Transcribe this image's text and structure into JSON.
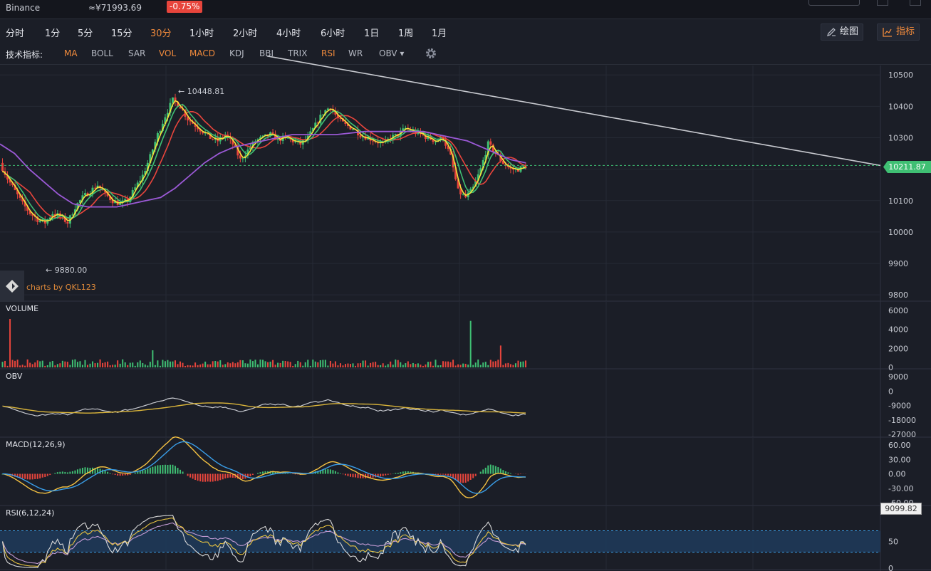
{
  "header": {
    "exchange": "Binance",
    "price": "≈¥71993.69",
    "change": "-0.75%"
  },
  "periods": [
    {
      "label": "分时",
      "active": false
    },
    {
      "label": "1分",
      "active": false
    },
    {
      "label": "5分",
      "active": false
    },
    {
      "label": "15分",
      "active": false
    },
    {
      "label": "30分",
      "active": true
    },
    {
      "label": "1小时",
      "active": false
    },
    {
      "label": "2小时",
      "active": false
    },
    {
      "label": "4小时",
      "active": false
    },
    {
      "label": "6小时",
      "active": false
    },
    {
      "label": "1日",
      "active": false
    },
    {
      "label": "1周",
      "active": false
    },
    {
      "label": "1月",
      "active": false
    }
  ],
  "tools": {
    "draw": "绘图",
    "indicators": "指标"
  },
  "indicator_bar": {
    "label": "技术指标:",
    "items": [
      {
        "label": "MA",
        "on": true
      },
      {
        "label": "BOLL",
        "on": false
      },
      {
        "label": "SAR",
        "on": false
      },
      {
        "label": "VOL",
        "on": true
      },
      {
        "label": "MACD",
        "on": true
      },
      {
        "label": "KDJ",
        "on": false
      },
      {
        "label": "BBI",
        "on": false
      },
      {
        "label": "TRIX",
        "on": false
      },
      {
        "label": "RSI",
        "on": true
      },
      {
        "label": "WR",
        "on": false
      },
      {
        "label": "OBV ▾",
        "on": false
      }
    ]
  },
  "credit": "charts by QKL123",
  "last_price_tag": "10211.87",
  "cursor_tag": "9099.82",
  "colors": {
    "up": "#3fbf73",
    "down": "#e8453c",
    "ma_fast": "#f5e23a",
    "ma_mid": "#3fbf73",
    "ma_slow": "#e8453c",
    "ma_long": "#9b59d6",
    "macd_dif": "#f5c242",
    "macd_dea": "#3a9ee8",
    "rsi_band": "#1f3b5c"
  },
  "chart_data": [
    {
      "type": "candlestick",
      "name": "price",
      "y_ticks": [
        "10500",
        "10400",
        "10300",
        "10200",
        "10100",
        "10000",
        "9900",
        "9800"
      ],
      "ylim": [
        9780,
        10530
      ],
      "annotations": [
        {
          "text": "← 10448.81",
          "value": 10448.81
        },
        {
          "text": "← 9880.00",
          "value": 9880.0
        }
      ],
      "last_price": 10211.87,
      "trend_line": {
        "from": 10560,
        "to": 10211.87
      },
      "close_path": [
        10220,
        10170,
        10130,
        10090,
        10060,
        10040,
        10030,
        10060,
        10050,
        10030,
        10080,
        10110,
        10130,
        10150,
        10120,
        10100,
        10090,
        10100,
        10140,
        10180,
        10240,
        10310,
        10370,
        10420,
        10400,
        10360,
        10340,
        10320,
        10300,
        10290,
        10310,
        10280,
        10230,
        10260,
        10290,
        10300,
        10310,
        10295,
        10300,
        10290,
        10280,
        10300,
        10340,
        10380,
        10400,
        10360,
        10340,
        10330,
        10310,
        10300,
        10290,
        10280,
        10300,
        10310,
        10330,
        10320,
        10310,
        10300,
        10290,
        10300,
        10240,
        10130,
        10110,
        10140,
        10200,
        10280,
        10250,
        10220,
        10200,
        10200,
        10210
      ],
      "ma_long": [
        10280,
        10250,
        10200,
        10160,
        10120,
        10090,
        10080,
        10080,
        10080,
        10090,
        10100,
        10110,
        10140,
        10180,
        10220,
        10250,
        10270,
        10280,
        10290,
        10300,
        10310,
        10310,
        10310,
        10310,
        10315,
        10320,
        10320,
        10320,
        10320,
        10320,
        10310,
        10300,
        10290,
        10270,
        10250,
        10230,
        10220
      ]
    },
    {
      "type": "bar",
      "name": "VOLUME",
      "y_ticks": [
        "6000",
        "4000",
        "2000",
        "0"
      ],
      "ylim": [
        0,
        6000
      ]
    },
    {
      "type": "line",
      "name": "OBV",
      "y_ticks": [
        "9000",
        "0",
        "-9000",
        "-18000",
        "-27000"
      ],
      "ylim": [
        -27000,
        9000
      ]
    },
    {
      "type": "line",
      "name": "MACD(12,26,9)",
      "y_ticks": [
        "60.00",
        "30.00",
        "0.00",
        "-30.00",
        "-60.00"
      ],
      "ylim": [
        -60,
        60
      ]
    },
    {
      "type": "line",
      "name": "RSI(6,12,24)",
      "y_ticks": [
        "50",
        "0"
      ],
      "ylim": [
        0,
        100
      ]
    }
  ]
}
